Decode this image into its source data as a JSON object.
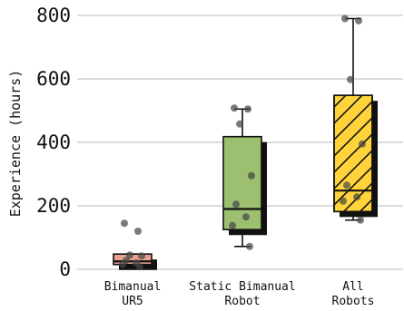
{
  "chart_data": {
    "type": "box",
    "title": "",
    "xlabel": "",
    "ylabel": "Experience (hours)",
    "ylim": [
      0,
      800
    ],
    "yticks": [
      0,
      200,
      400,
      600,
      800
    ],
    "grid": "horizontal",
    "categories": [
      {
        "lines": [
          "Bimanual",
          "UR5"
        ]
      },
      {
        "lines": [
          "Static Bimanual",
          "Robot"
        ]
      },
      {
        "lines": [
          "All",
          "Robots"
        ]
      }
    ],
    "boxes": [
      {
        "q1": 15,
        "median": 25,
        "q3": 48,
        "whisker_low": 8,
        "whisker_high": 48,
        "fill": "#e6a190",
        "hatch": false,
        "points": [
          145,
          120,
          45,
          42,
          28,
          20,
          15,
          8
        ]
      },
      {
        "q1": 125,
        "median": 190,
        "q3": 418,
        "whisker_low": 72,
        "whisker_high": 505,
        "fill": "#9cc070",
        "hatch": false,
        "points": [
          508,
          505,
          458,
          295,
          205,
          165,
          138,
          72
        ]
      },
      {
        "q1": 182,
        "median": 248,
        "q3": 548,
        "whisker_low": 155,
        "whisker_high": 790,
        "fill": "#ffd43b",
        "hatch": true,
        "points": [
          790,
          783,
          598,
          395,
          265,
          228,
          215,
          155
        ]
      }
    ]
  }
}
